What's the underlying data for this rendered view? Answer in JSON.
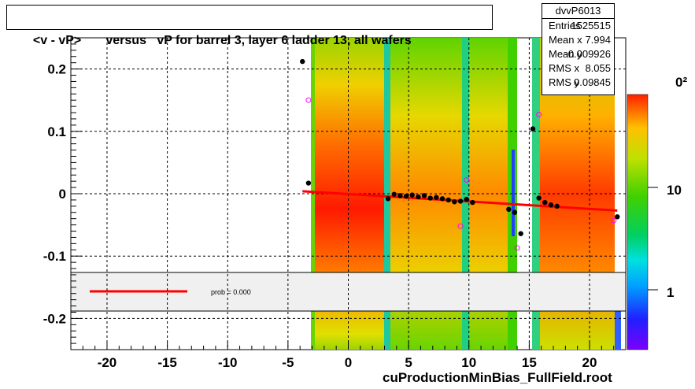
{
  "header": {
    "title": "<v - vP>       versus   vP for barrel 3, layer 6 ladder 13, all wafers"
  },
  "stats": {
    "name": "dvvP6013",
    "rows": [
      {
        "key": "Entries",
        "value": "1525515"
      },
      {
        "key": "Mean x",
        "value": "7.994"
      },
      {
        "key": "Mean y",
        "value": "-0.009926"
      },
      {
        "key": "RMS x",
        "value": "8.055"
      },
      {
        "key": "RMS y",
        "value": "0.09845"
      }
    ]
  },
  "legend": {
    "prob_label": "prob = 0.000",
    "line_color": "#ff0000"
  },
  "footer": {
    "file_label": "cuProductionMinBias_FullField.root"
  },
  "colors": {
    "profile_markers": "#000000",
    "open_markers": "#ff00ff",
    "fit_line": "#ff0000"
  },
  "chart_data": {
    "type": "heatmap",
    "title": "<v - vP>       versus   vP for barrel 3, layer 6 ladder 13, all wafers",
    "xlabel": "",
    "ylabel": "",
    "xlim": [
      -23,
      23
    ],
    "ylim": [
      -0.25,
      0.25
    ],
    "x_ticks": [
      -20,
      -15,
      -10,
      -5,
      0,
      5,
      10,
      15,
      20
    ],
    "y_ticks": [
      -0.2,
      -0.1,
      0,
      0.1,
      0.2
    ],
    "y_tick_labels": [
      "-0.2",
      "-0.1",
      "0",
      "0.1",
      "0.2"
    ],
    "grid": true,
    "colorbar": {
      "scale": "log",
      "tick_labels": [
        "1",
        "10"
      ],
      "partial_label": "0²"
    },
    "profile_means": {
      "x": [
        -3.8,
        -3.3,
        3.3,
        3.8,
        4.3,
        4.8,
        5.3,
        5.8,
        6.3,
        6.8,
        7.3,
        7.8,
        8.3,
        8.8,
        9.3,
        9.8,
        10.3,
        13.3,
        13.8,
        14.3,
        15.3,
        15.8,
        16.3,
        16.8,
        17.3,
        22.3
      ],
      "y": [
        0.212,
        0.017,
        -0.008,
        -0.001,
        -0.003,
        -0.004,
        -0.002,
        -0.005,
        -0.003,
        -0.007,
        -0.006,
        -0.008,
        -0.01,
        -0.013,
        -0.012,
        -0.009,
        -0.014,
        -0.025,
        -0.03,
        -0.064,
        0.104,
        -0.007,
        -0.014,
        -0.018,
        -0.02,
        -0.037
      ]
    },
    "open_markers": {
      "x": [
        -3.3,
        9.3,
        9.8,
        14.0,
        15.8,
        22.0
      ],
      "y": [
        0.15,
        -0.052,
        0.022,
        -0.087,
        0.127,
        -0.043
      ]
    },
    "fit_line": {
      "x": [
        -3.8,
        22.3
      ],
      "y": [
        0.004,
        -0.027
      ]
    },
    "legend": {
      "entries": [
        "prob = 0.000"
      ],
      "placement": "bottom-left inset band"
    }
  }
}
